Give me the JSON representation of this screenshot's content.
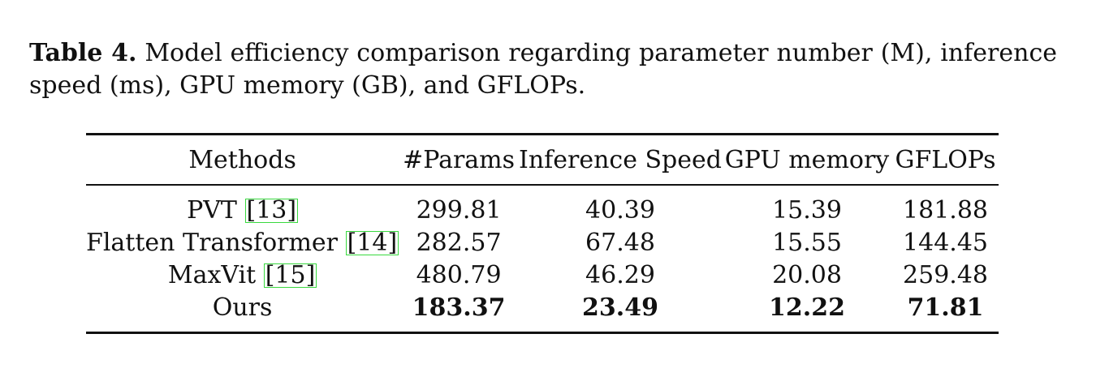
{
  "caption": {
    "label": "Table 4.",
    "text": "Model efficiency comparison regarding parameter number (M), inference speed (ms), GPU memory (GB), and GFLOPs."
  },
  "table": {
    "headers": [
      "Methods",
      "#Params",
      "Inference Speed",
      "GPU memory",
      "GFLOPs"
    ],
    "rows": [
      {
        "method": "PVT",
        "cite": "[13]",
        "params": "299.81",
        "speed": "40.39",
        "gpu": "15.39",
        "gflops": "181.88"
      },
      {
        "method": "Flatten Transformer",
        "cite": "[14]",
        "params": "282.57",
        "speed": "67.48",
        "gpu": "15.55",
        "gflops": "144.45"
      },
      {
        "method": "MaxVit",
        "cite": "[15]",
        "params": "480.79",
        "speed": "46.29",
        "gpu": "20.08",
        "gflops": "259.48"
      },
      {
        "method": "Ours",
        "cite": "",
        "params": "183.37",
        "speed": "23.49",
        "gpu": "12.22",
        "gflops": "71.81"
      }
    ]
  },
  "colors": {
    "citation_box": "#39d93f",
    "text": "#111111"
  }
}
